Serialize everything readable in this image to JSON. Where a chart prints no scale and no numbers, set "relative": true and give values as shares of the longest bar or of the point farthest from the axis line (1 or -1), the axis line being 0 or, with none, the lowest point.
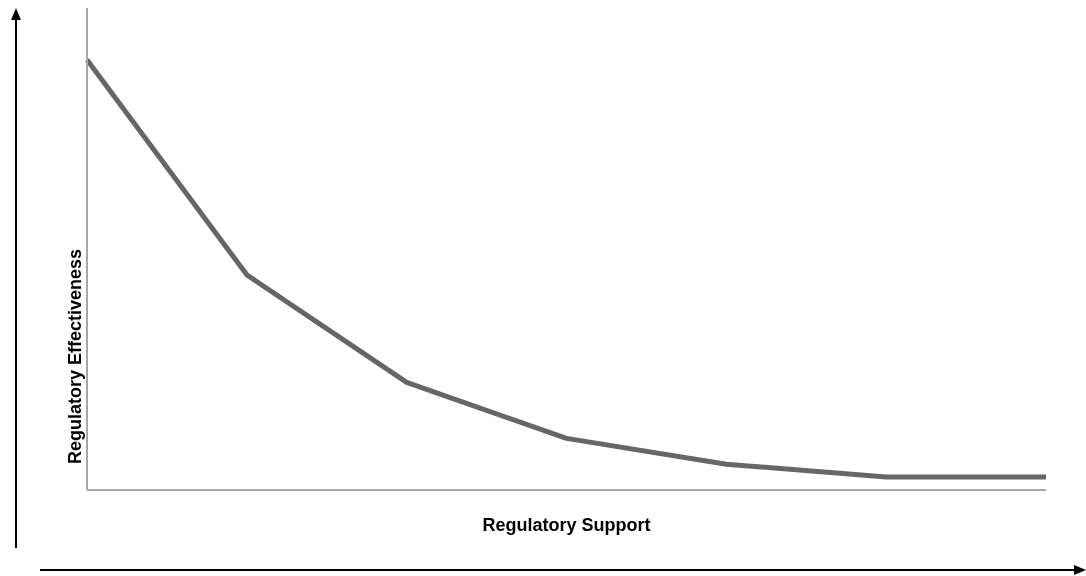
{
  "chart_data": {
    "type": "line",
    "relative": true,
    "xlabel": "Regulatory Support",
    "ylabel": "Regulatory Effectiveness",
    "categories": [
      null,
      null,
      null,
      null,
      null,
      null,
      null
    ],
    "series": [
      {
        "color": "#666666",
        "values": [
          1,
          0.5,
          0.25,
          0.12,
          0.06,
          0.03,
          0.03
        ]
      }
    ],
    "grid": false,
    "legend": false,
    "marker": "none",
    "line_style": "solid"
  }
}
